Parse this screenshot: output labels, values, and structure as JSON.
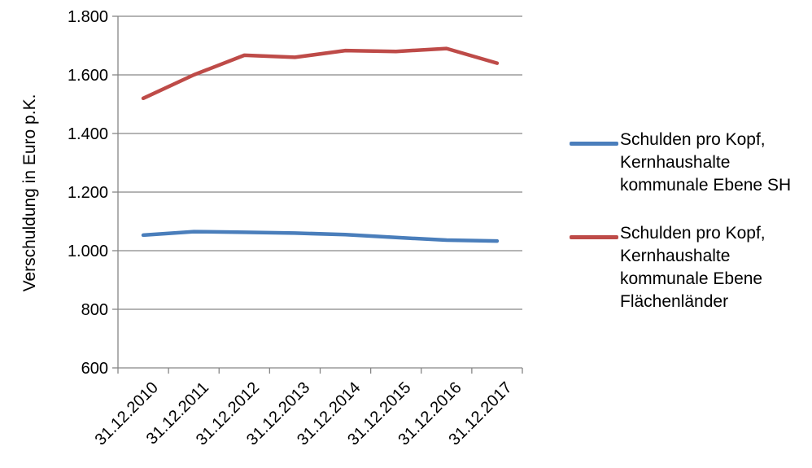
{
  "chart_data": {
    "type": "line",
    "categories": [
      "31.12.2010",
      "31.12.2011",
      "31.12.2012",
      "31.12.2013",
      "31.12.2014",
      "31.12.2015",
      "31.12.2016",
      "31.12.2017"
    ],
    "series": [
      {
        "name": "Schulden pro Kopf,\nKernhaushalte\nkommunale Ebene SH",
        "color": "#4A7EBB",
        "values": [
          1053,
          1065,
          1063,
          1060,
          1055,
          1045,
          1036,
          1033
        ]
      },
      {
        "name": "Schulden pro Kopf,\nKernhaushalte\nkommunale Ebene\nFlächenländer",
        "color": "#BE4B48",
        "values": [
          1520,
          1600,
          1667,
          1660,
          1683,
          1680,
          1690,
          1640
        ]
      }
    ],
    "ylabel": "Verschuldung in Euro p.K.",
    "xlabel": "",
    "ylim": [
      600,
      1800
    ],
    "yticks": [
      600,
      800,
      1000,
      1200,
      1400,
      1600,
      1800
    ],
    "ytick_labels": [
      "600",
      "800",
      "1.000",
      "1.200",
      "1.400",
      "1.600",
      "1.800"
    ],
    "grid": true,
    "legend_position": "right"
  }
}
